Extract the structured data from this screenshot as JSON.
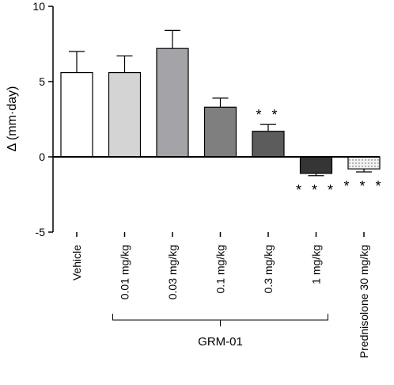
{
  "chart_data": {
    "type": "bar",
    "title": "",
    "ylabel": "Δ (mm·day)",
    "xlabel": "",
    "ylim": [
      -5,
      10
    ],
    "yticks": [
      -5,
      0,
      5,
      10
    ],
    "categories": [
      "Vehicle",
      "0.01 mg/kg",
      "0.03 mg/kg",
      "0.1 mg/kg",
      "0.3 mg/kg",
      "1 mg/kg",
      "Prednisolone 30 mg/kg"
    ],
    "values": [
      5.6,
      5.6,
      7.2,
      3.3,
      1.7,
      -1.1,
      -0.8
    ],
    "errors": [
      1.4,
      1.1,
      1.2,
      0.6,
      0.45,
      0.15,
      0.2
    ],
    "significance": [
      "",
      "",
      "",
      "",
      "**",
      "***",
      "***"
    ],
    "bar_colors": [
      "#ffffff",
      "#d4d4d4",
      "#a3a3a8",
      "#7f7f7f",
      "#5c5c5c",
      "#353535",
      "#ececec"
    ],
    "bar_patterns": [
      "",
      "",
      "",
      "",
      "",
      "",
      "dotted"
    ],
    "group_bracket": {
      "label": "GRM-01",
      "span": [
        1,
        5
      ]
    },
    "grid": false,
    "legend": "none"
  }
}
